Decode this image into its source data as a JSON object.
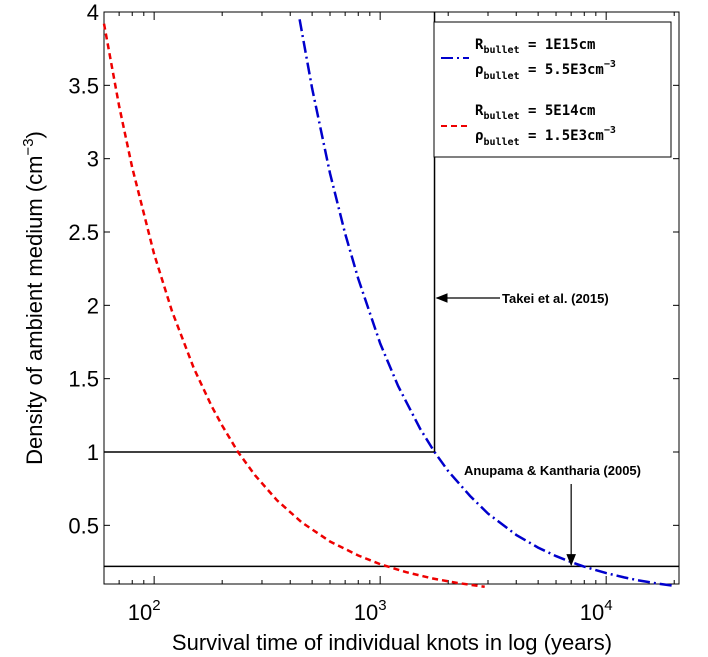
{
  "chart_data": {
    "type": "line",
    "xscale": "log",
    "xlim": [
      60,
      21000
    ],
    "ylim": [
      0.1,
      4
    ],
    "xlabel": "Survival time of individual knots in  log (years)",
    "ylabel_main": "Density of ambient medium (cm",
    "ylabel_sup": "−3",
    "ylabel_close": ")",
    "x_ticks": [
      {
        "value": 100,
        "base": "10",
        "exp": "2"
      },
      {
        "value": 1000,
        "base": "10",
        "exp": "3"
      },
      {
        "value": 10000,
        "base": "10",
        "exp": "4"
      }
    ],
    "y_ticks": [
      {
        "value": 0.5,
        "label": "0.5"
      },
      {
        "value": 1,
        "label": "1"
      },
      {
        "value": 1.5,
        "label": "1.5"
      },
      {
        "value": 2,
        "label": "2"
      },
      {
        "value": 2.5,
        "label": "2.5"
      },
      {
        "value": 3,
        "label": "3"
      },
      {
        "value": 3.5,
        "label": "3.5"
      },
      {
        "value": 4,
        "label": "4"
      }
    ],
    "series": [
      {
        "legend_line1": {
          "sym": "R",
          "sub": "bullet",
          "val": " = 1E15cm"
        },
        "legend_line2": {
          "sym": "ρ",
          "sub": "bullet",
          "val": " = 5.5E3cm",
          "sup": "−3"
        },
        "color": "#0000cc",
        "dash": "12,4,2,4",
        "x": [
          440,
          500,
          600,
          700,
          800,
          1000,
          1200,
          1500,
          1740,
          2000,
          2500,
          3000,
          4000,
          5000,
          6000,
          7000,
          8000,
          10000,
          12000,
          14000,
          17000,
          20000
        ],
        "y": [
          3.95,
          3.48,
          2.9,
          2.49,
          2.18,
          1.74,
          1.45,
          1.16,
          1.0,
          0.87,
          0.7,
          0.58,
          0.435,
          0.348,
          0.29,
          0.249,
          0.218,
          0.174,
          0.145,
          0.124,
          0.102,
          0.087
        ]
      },
      {
        "legend_line1": {
          "sym": "R",
          "sub": "bullet",
          "val": " = 5E14cm"
        },
        "legend_line2": {
          "sym": "ρ",
          "sub": "bullet",
          "val": " = 1.5E3cm",
          "sup": "−3"
        },
        "color": "#ee0000",
        "dash": "6,4",
        "x": [
          60,
          70,
          80,
          100,
          120,
          150,
          180,
          200,
          235,
          280,
          350,
          450,
          600,
          800,
          1000,
          1300,
          1700,
          2200,
          2900
        ],
        "y": [
          3.92,
          3.36,
          2.94,
          2.35,
          1.96,
          1.57,
          1.31,
          1.18,
          1.0,
          0.84,
          0.67,
          0.52,
          0.39,
          0.294,
          0.235,
          0.181,
          0.138,
          0.107,
          0.081
        ]
      }
    ],
    "reference_lines": [
      {
        "from": [
          60,
          1.0
        ],
        "to": [
          1740,
          1.0
        ]
      },
      {
        "from": [
          1740,
          1.0
        ],
        "to": [
          1740,
          4
        ]
      },
      {
        "from": [
          60,
          0.22
        ],
        "to": [
          21000,
          0.22
        ]
      }
    ],
    "annotations": [
      {
        "text": "Takei et al. (2015)",
        "arrow_to": [
          1780,
          2.05
        ]
      },
      {
        "text": "Anupama & Kantharia (2005)",
        "arrow_to": [
          7000,
          0.23
        ]
      }
    ],
    "legend_position": "top-right"
  }
}
